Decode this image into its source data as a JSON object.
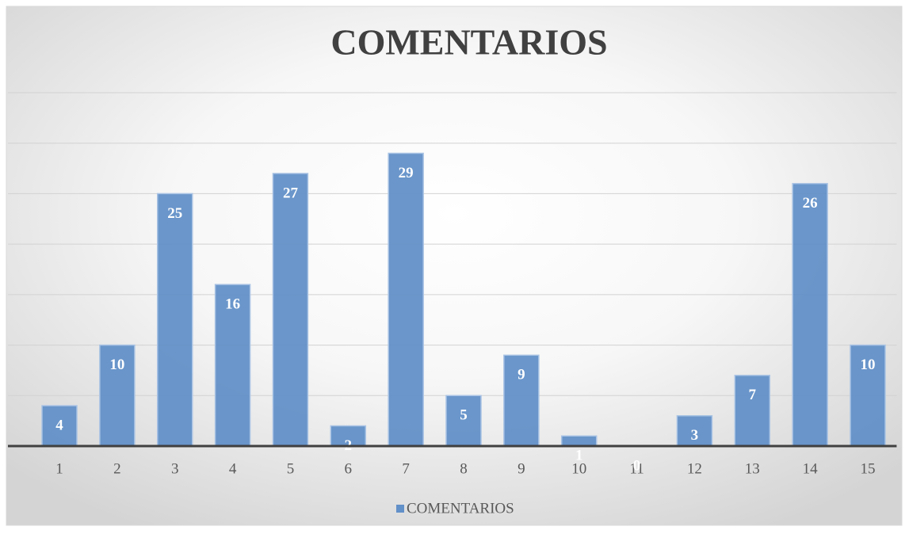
{
  "chart_data": {
    "type": "bar",
    "title": "COMENTARIOS",
    "categories": [
      "1",
      "2",
      "3",
      "4",
      "5",
      "6",
      "7",
      "8",
      "9",
      "10",
      "11",
      "12",
      "13",
      "14",
      "15"
    ],
    "series": [
      {
        "name": "COMENTARIOS",
        "color": "#6290c8",
        "values": [
          4,
          10,
          25,
          16,
          27,
          2,
          29,
          5,
          9,
          1,
          0,
          3,
          7,
          26,
          10
        ]
      }
    ],
    "ylim": [
      0,
      35
    ],
    "yticks": [
      0,
      5,
      10,
      15,
      20,
      25,
      30,
      35
    ],
    "grid": true,
    "legend": "bottom"
  }
}
